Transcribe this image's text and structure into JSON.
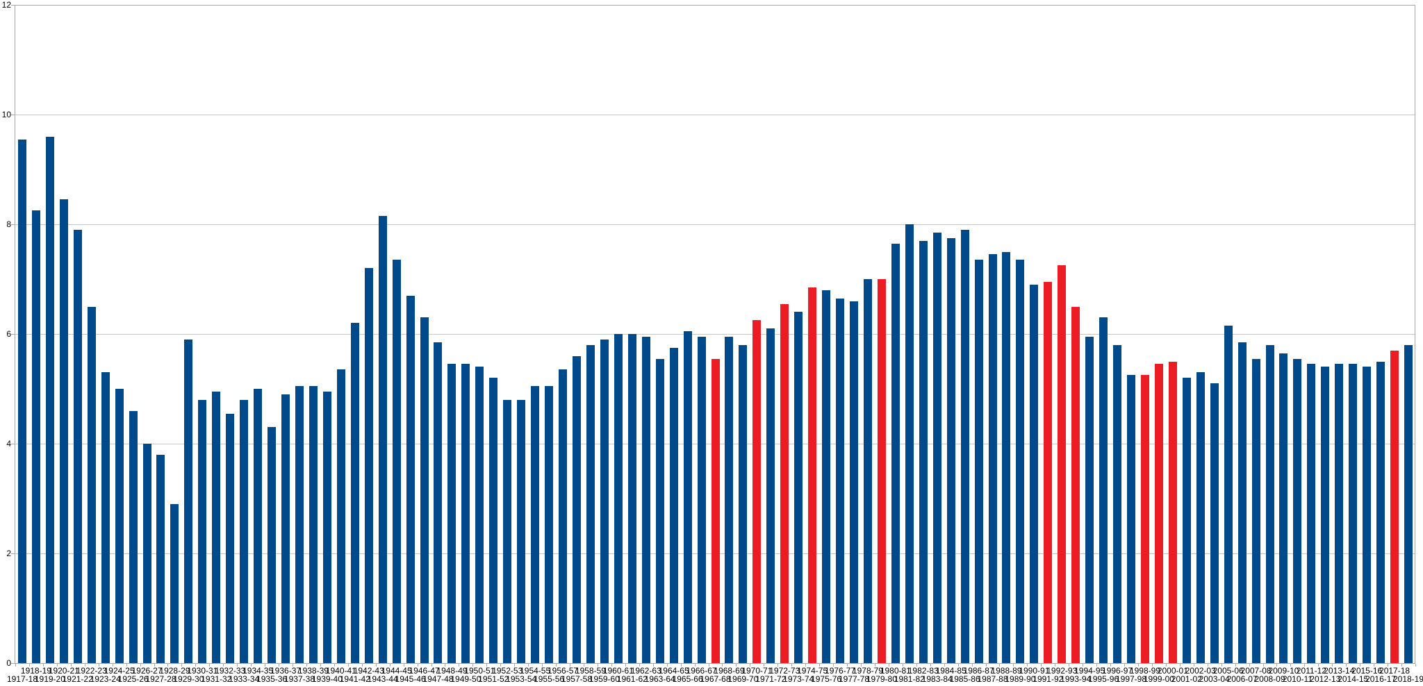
{
  "chart_data": {
    "type": "bar",
    "title": "",
    "xlabel": "",
    "ylabel": "",
    "ylim": [
      0,
      12
    ],
    "y_ticks": [
      0,
      2,
      4,
      6,
      8,
      10,
      12
    ],
    "grid": "horizontal",
    "legend": "none",
    "bar_color": "#004A8C",
    "highlight_color": "#EC1C24",
    "gridline_color": "#C6C6C6",
    "axis_color": "#A6A6A6",
    "background_color": "#FFFFFF",
    "text_color": "#000000",
    "categories": [
      "1917-18",
      "1918-19",
      "1919-20",
      "1920-21",
      "1921-22",
      "1922-23",
      "1923-24",
      "1924-25",
      "1925-26",
      "1926-27",
      "1927-28",
      "1928-29",
      "1929-30",
      "1930-31",
      "1931-32",
      "1932-33",
      "1933-34",
      "1934-35",
      "1935-36",
      "1936-37",
      "1937-38",
      "1938-39",
      "1939-40",
      "1940-41",
      "1941-42",
      "1942-43",
      "1943-44",
      "1944-45",
      "1945-46",
      "1946-47",
      "1947-48",
      "1948-49",
      "1949-50",
      "1950-51",
      "1951-52",
      "1952-53",
      "1953-54",
      "1954-55",
      "1955-56",
      "1956-57",
      "1957-58",
      "1958-59",
      "1959-60",
      "1960-61",
      "1961-62",
      "1962-63",
      "1963-64",
      "1964-65",
      "1965-66",
      "1966-67",
      "1967-68",
      "1968-69",
      "1969-70",
      "1970-71",
      "1971-72",
      "1972-73",
      "1973-74",
      "1974-75",
      "1975-76",
      "1976-77",
      "1977-78",
      "1978-79",
      "1979-80",
      "1980-81",
      "1981-82",
      "1982-83",
      "1983-84",
      "1984-85",
      "1985-86",
      "1986-87",
      "1987-88",
      "1988-89",
      "1989-90",
      "1990-91",
      "1991-92",
      "1992-93",
      "1993-94",
      "1994-95",
      "1995-96",
      "1996-97",
      "1997-98",
      "1998-99",
      "1999-00",
      "2000-01",
      "2001-02",
      "2002-03",
      "2003-04",
      "2005-06",
      "2006-07",
      "2007-08",
      "2008-09",
      "2009-10",
      "2010-11",
      "2011-12",
      "2012-13",
      "2013-14",
      "2014-15",
      "2015-16",
      "2016-17",
      "2017-18",
      "2018-19"
    ],
    "values": [
      9.55,
      8.25,
      9.6,
      8.45,
      7.9,
      6.5,
      5.3,
      5.0,
      4.6,
      4.0,
      3.8,
      2.9,
      5.9,
      4.8,
      4.95,
      4.55,
      4.8,
      5.0,
      4.3,
      4.9,
      5.05,
      5.05,
      4.95,
      5.35,
      6.2,
      7.2,
      8.15,
      7.35,
      6.7,
      6.3,
      5.85,
      5.45,
      5.45,
      5.4,
      5.2,
      4.8,
      4.8,
      5.05,
      5.05,
      5.35,
      5.6,
      5.8,
      5.9,
      6.0,
      6.0,
      5.95,
      5.55,
      5.75,
      6.05,
      5.95,
      5.55,
      5.95,
      5.8,
      6.25,
      6.1,
      6.55,
      6.4,
      6.85,
      6.8,
      6.65,
      6.6,
      7.0,
      7.0,
      7.65,
      8.0,
      7.7,
      7.85,
      7.75,
      7.9,
      7.35,
      7.45,
      7.5,
      7.35,
      6.9,
      6.95,
      7.25,
      6.5,
      5.95,
      6.3,
      5.8,
      5.25,
      5.25,
      5.45,
      5.5,
      5.2,
      5.3,
      5.1,
      6.15,
      5.85,
      5.55,
      5.8,
      5.65,
      5.55,
      5.45,
      5.4,
      5.45,
      5.45,
      5.4,
      5.5,
      5.7,
      5.8
    ],
    "highlighted_categories": [
      "1967-68",
      "1970-71",
      "1972-73",
      "1974-75",
      "1979-80",
      "1991-92",
      "1992-93",
      "1993-94",
      "1998-99",
      "1999-00",
      "2000-01",
      "2017-18"
    ]
  }
}
